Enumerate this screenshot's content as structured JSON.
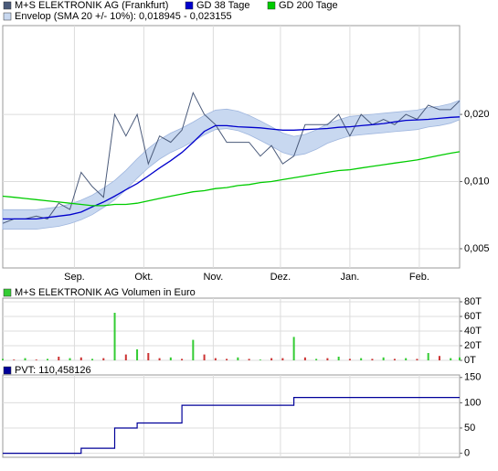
{
  "chart_data": [
    {
      "type": "line",
      "log_scale": true,
      "grid": true,
      "x": [
        0,
        5,
        10,
        15,
        20,
        25,
        30,
        35,
        40,
        45,
        50,
        55,
        60,
        65,
        70,
        75,
        80,
        85,
        90,
        95,
        100,
        105,
        110,
        115,
        120,
        125,
        130,
        135,
        140,
        145,
        150,
        155,
        160,
        165,
        170,
        175,
        180,
        185,
        190,
        195,
        200,
        204
      ],
      "xlim": [
        0,
        204
      ],
      "xticks": [
        {
          "value": 32,
          "label": "Sep."
        },
        {
          "value": 63,
          "label": "Okt."
        },
        {
          "value": 94,
          "label": "Nov."
        },
        {
          "value": 124,
          "label": "Dez."
        },
        {
          "value": 155,
          "label": "Jan."
        },
        {
          "value": 186,
          "label": "Feb."
        }
      ],
      "ylim": [
        0.0041,
        0.05
      ],
      "yticks": [
        {
          "value": 0.005,
          "label": "0,005"
        },
        {
          "value": 0.01,
          "label": "0,010"
        },
        {
          "value": 0.02,
          "label": "0,020"
        }
      ],
      "series": [
        {
          "name": "M+S ELEKTRONIK AG (Frankfurt)",
          "color": "#4a5a7a",
          "values": [
            0.0065,
            0.0068,
            0.0068,
            0.007,
            0.0068,
            0.008,
            0.0075,
            0.011,
            0.0095,
            0.0085,
            0.02,
            0.016,
            0.02,
            0.012,
            0.016,
            0.015,
            0.017,
            0.025,
            0.02,
            0.018,
            0.015,
            0.015,
            0.015,
            0.013,
            0.0145,
            0.012,
            0.013,
            0.018,
            0.018,
            0.018,
            0.02,
            0.016,
            0.02,
            0.018,
            0.019,
            0.018,
            0.02,
            0.019,
            0.022,
            0.021,
            0.021,
            0.023
          ]
        },
        {
          "name": "GD 38 Tage",
          "color": "#0000cc",
          "values": [
            0.0068,
            0.0068,
            0.0068,
            0.0068,
            0.0069,
            0.007,
            0.0071,
            0.0073,
            0.0077,
            0.0081,
            0.0086,
            0.0092,
            0.0098,
            0.0106,
            0.0115,
            0.0124,
            0.0135,
            0.015,
            0.0168,
            0.0178,
            0.0178,
            0.0176,
            0.0175,
            0.0174,
            0.0172,
            0.017,
            0.017,
            0.0171,
            0.0172,
            0.0173,
            0.0175,
            0.0176,
            0.0178,
            0.018,
            0.0182,
            0.0185,
            0.0188,
            0.0189,
            0.019,
            0.0192,
            0.0194,
            0.0195
          ]
        },
        {
          "name": "GD 200 Tage",
          "color": "#00cc00",
          "values": [
            0.0086,
            0.0085,
            0.0084,
            0.0083,
            0.0082,
            0.0081,
            0.008,
            0.0079,
            0.0078,
            0.0078,
            0.0079,
            0.0079,
            0.008,
            0.0082,
            0.0084,
            0.0086,
            0.0088,
            0.009,
            0.0091,
            0.0093,
            0.0094,
            0.0096,
            0.0097,
            0.0099,
            0.01,
            0.0102,
            0.0104,
            0.0106,
            0.0108,
            0.011,
            0.0112,
            0.0113,
            0.0115,
            0.0117,
            0.0119,
            0.0121,
            0.0123,
            0.0125,
            0.0128,
            0.0131,
            0.0134,
            0.0136
          ]
        }
      ],
      "band": {
        "name": "Envelop (SMA 20 +/- 10%): 0,018945 - 0,023155",
        "color": "#c8d8f0",
        "lower": [
          0.00612,
          0.00612,
          0.00612,
          0.00612,
          0.00621,
          0.0063,
          0.00648,
          0.00675,
          0.00711,
          0.00765,
          0.00828,
          0.00918,
          0.01035,
          0.01152,
          0.0126,
          0.0135,
          0.01422,
          0.01512,
          0.0162,
          0.0171,
          0.01728,
          0.01692,
          0.0162,
          0.0153,
          0.0144,
          0.0135,
          0.01305,
          0.01332,
          0.01395,
          0.01485,
          0.01548,
          0.01602,
          0.0162,
          0.01638,
          0.01656,
          0.01674,
          0.01692,
          0.0171,
          0.01755,
          0.01782,
          0.01827,
          0.018945
        ],
        "upper": [
          0.00748,
          0.00748,
          0.00748,
          0.00748,
          0.00759,
          0.0077,
          0.00792,
          0.00825,
          0.00869,
          0.00935,
          0.01012,
          0.01122,
          0.01265,
          0.01408,
          0.0154,
          0.0165,
          0.01738,
          0.01848,
          0.0198,
          0.0209,
          0.02112,
          0.02068,
          0.0198,
          0.0187,
          0.0176,
          0.0165,
          0.01595,
          0.01628,
          0.01705,
          0.01815,
          0.01892,
          0.01958,
          0.0198,
          0.02002,
          0.02024,
          0.02046,
          0.02068,
          0.0209,
          0.02145,
          0.02178,
          0.02233,
          0.023155
        ]
      }
    },
    {
      "type": "bar",
      "title": "M+S ELEKTRONIK AG Volumen in Euro",
      "color": "#33cc33",
      "grid": true,
      "x": [
        0,
        5,
        10,
        15,
        20,
        25,
        30,
        35,
        40,
        45,
        50,
        55,
        60,
        65,
        70,
        75,
        80,
        85,
        90,
        95,
        100,
        105,
        110,
        115,
        120,
        125,
        130,
        135,
        140,
        145,
        150,
        155,
        160,
        165,
        170,
        175,
        180,
        185,
        190,
        195,
        200,
        204
      ],
      "xlim": [
        0,
        204
      ],
      "values": [
        2000,
        1000,
        3000,
        1000,
        2000,
        5000,
        3000,
        4000,
        2000,
        3000,
        65000,
        8000,
        15000,
        10000,
        3000,
        4000,
        2000,
        28000,
        8000,
        3000,
        2000,
        4000,
        2000,
        1000,
        3000,
        3000,
        32000,
        4000,
        2000,
        3000,
        5000,
        2000,
        3000,
        2000,
        4000,
        2000,
        3000,
        2000,
        10000,
        6000,
        3000,
        4000
      ],
      "colors": [
        "#33cc33",
        "#cc3333",
        "#33cc33",
        "#cc3333",
        "#33cc33",
        "#cc3333",
        "#33cc33",
        "#cc3333",
        "#33cc33",
        "#cc3333",
        "#33cc33",
        "#cc3333",
        "#33cc33",
        "#cc3333",
        "#cc3333",
        "#33cc33",
        "#cc3333",
        "#33cc33",
        "#cc3333",
        "#cc3333",
        "#cc3333",
        "#33cc33",
        "#cc3333",
        "#33cc33",
        "#cc3333",
        "#cc3333",
        "#33cc33",
        "#cc3333",
        "#33cc33",
        "#cc3333",
        "#33cc33",
        "#cc3333",
        "#33cc33",
        "#cc3333",
        "#33cc33",
        "#cc3333",
        "#33cc33",
        "#cc3333",
        "#33cc33",
        "#cc3333",
        "#33cc33",
        "#33cc33"
      ],
      "ylim": [
        0,
        85000
      ],
      "yticks": [
        {
          "value": 0,
          "label": "0T"
        },
        {
          "value": 20000,
          "label": "20T"
        },
        {
          "value": 40000,
          "label": "40T"
        },
        {
          "value": 60000,
          "label": "60T"
        },
        {
          "value": 80000,
          "label": "80T"
        }
      ]
    },
    {
      "type": "step",
      "title": "PVT: 110,458126",
      "color": "#000099",
      "grid": true,
      "x": [
        0,
        5,
        10,
        15,
        20,
        25,
        30,
        35,
        40,
        45,
        50,
        55,
        60,
        65,
        70,
        75,
        80,
        85,
        90,
        95,
        100,
        105,
        110,
        115,
        120,
        125,
        130,
        135,
        140,
        145,
        150,
        155,
        160,
        165,
        170,
        175,
        180,
        185,
        190,
        195,
        200,
        204
      ],
      "xlim": [
        0,
        204
      ],
      "values": [
        0,
        0,
        0,
        0,
        0,
        0,
        0,
        10,
        10,
        10,
        50,
        50,
        60,
        60,
        60,
        60,
        95,
        95,
        95,
        95,
        95,
        95,
        95,
        95,
        95,
        95,
        110.458126,
        110.458126,
        110.458126,
        110.458126,
        110.458126,
        110.458126,
        110.458126,
        110.458126,
        110.458126,
        110.458126,
        110.458126,
        110.458126,
        110.458126,
        110.458126,
        110.458126,
        110.458126
      ],
      "ylim": [
        -8,
        155
      ],
      "yticks": [
        0,
        50,
        100,
        150
      ]
    }
  ]
}
